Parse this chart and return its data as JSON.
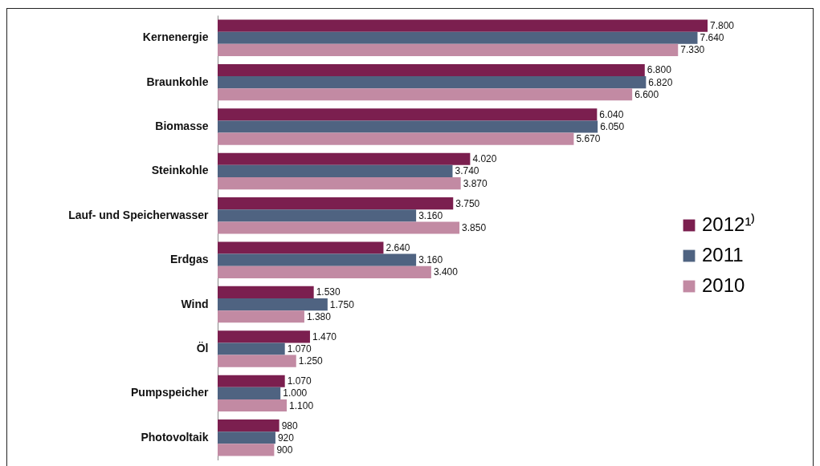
{
  "chart_data": {
    "type": "bar",
    "orientation": "horizontal",
    "categories": [
      "Kernenergie",
      "Braunkohle",
      "Biomasse",
      "Steinkohle",
      "Lauf- und Speicherwasser",
      "Erdgas",
      "Wind",
      "Öl",
      "Pumpspeicher",
      "Photovoltaik"
    ],
    "series": [
      {
        "name": "2012¹⁾",
        "color": "#7b1f4f",
        "values": [
          7800,
          6800,
          6040,
          4020,
          3750,
          2640,
          1530,
          1470,
          1070,
          980
        ],
        "value_labels": [
          "7.800",
          "6.800",
          "6.040",
          "4.020",
          "3.750",
          "2.640",
          "1.530",
          "1.470",
          "1.070",
          "980"
        ]
      },
      {
        "name": "2011",
        "color": "#4f6381",
        "values": [
          7640,
          6820,
          6050,
          3740,
          3160,
          3160,
          1750,
          1070,
          1000,
          920
        ],
        "value_labels": [
          "7.640",
          "6.820",
          "6.050",
          "3.740",
          "3.160",
          "3.160",
          "1.750",
          "1.070",
          "1.000",
          "920"
        ]
      },
      {
        "name": "2010",
        "color": "#c28aa3",
        "values": [
          7330,
          6600,
          5670,
          3870,
          3850,
          3400,
          1380,
          1250,
          1100,
          900
        ],
        "value_labels": [
          "7.330",
          "6.600",
          "5.670",
          "3.870",
          "3.850",
          "3.400",
          "1.380",
          "1.250",
          "1.100",
          "900"
        ]
      }
    ],
    "legend": "right",
    "grid": false
  }
}
